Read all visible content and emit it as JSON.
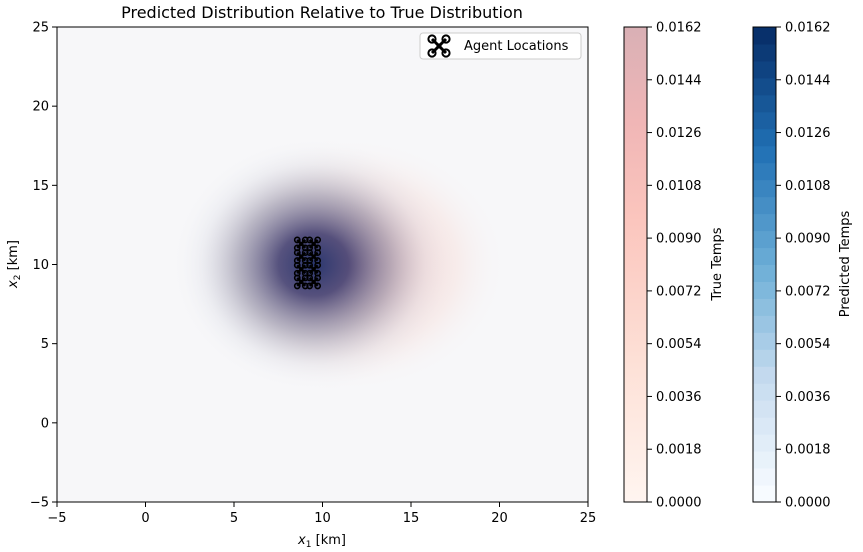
{
  "chart_data": {
    "type": "heatmap",
    "title": "Predicted Distribution Relative to True Distribution",
    "xlabel_var": "x",
    "xlabel_sub": "1",
    "xlabel_unit": " [km]",
    "ylabel_var": "x",
    "ylabel_sub": "2",
    "ylabel_unit": " [km]",
    "xlim": [
      -5,
      25
    ],
    "ylim": [
      -5,
      25
    ],
    "xticks": [
      -5,
      0,
      5,
      10,
      15,
      20,
      25
    ],
    "yticks": [
      -5,
      0,
      5,
      10,
      15,
      20,
      25
    ],
    "legend": {
      "label": "Agent Locations",
      "placement": "top-right",
      "icon": "quadcopter-icon"
    },
    "true_distribution": {
      "center": [
        11.5,
        10
      ],
      "spread": [
        4.0,
        3.6
      ],
      "colormap": "Reds"
    },
    "predicted_distribution": {
      "center": [
        9.5,
        10
      ],
      "spread": [
        3.6,
        3.6
      ],
      "colormap": "Blues"
    },
    "agents": [
      {
        "x": 8.8,
        "y": 11.3
      },
      {
        "x": 9.5,
        "y": 11.3
      },
      {
        "x": 8.8,
        "y": 10.5
      },
      {
        "x": 9.5,
        "y": 10.5
      },
      {
        "x": 8.8,
        "y": 9.7
      },
      {
        "x": 9.5,
        "y": 9.7
      },
      {
        "x": 8.8,
        "y": 8.9
      },
      {
        "x": 9.5,
        "y": 8.9
      }
    ],
    "colorbars": [
      {
        "name": "True Temps",
        "colormap": "Reds",
        "range": [
          0,
          0.0162
        ],
        "ticks": [
          "0.0000",
          "0.0018",
          "0.0036",
          "0.0054",
          "0.0072",
          "0.0090",
          "0.0108",
          "0.0126",
          "0.0144",
          "0.0162"
        ]
      },
      {
        "name": "Predicted Temps",
        "colormap": "Blues",
        "range": [
          0,
          0.0162
        ],
        "ticks": [
          "0.0000",
          "0.0018",
          "0.0036",
          "0.0054",
          "0.0072",
          "0.0090",
          "0.0108",
          "0.0126",
          "0.0144",
          "0.0162"
        ]
      }
    ]
  }
}
